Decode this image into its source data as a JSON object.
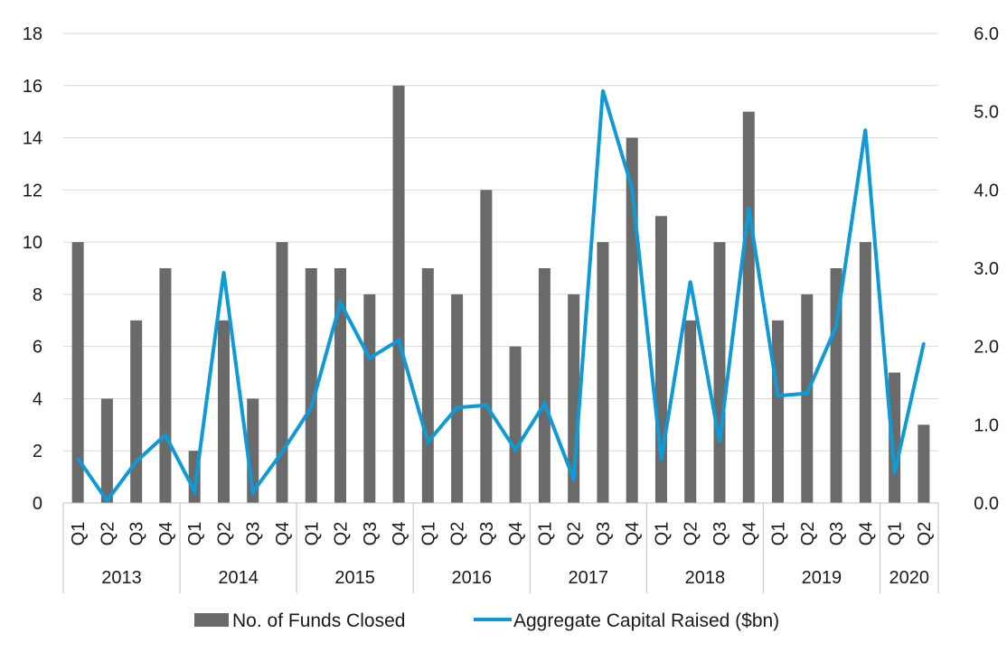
{
  "chart_data": {
    "type": "bar+line",
    "title": "",
    "xlabel": "",
    "ylabel": "",
    "groups": [
      {
        "label": "2013",
        "quarters": [
          "Q1",
          "Q2",
          "Q3",
          "Q4"
        ]
      },
      {
        "label": "2014",
        "quarters": [
          "Q1",
          "Q2",
          "Q3",
          "Q4"
        ]
      },
      {
        "label": "2015",
        "quarters": [
          "Q1",
          "Q2",
          "Q3",
          "Q4"
        ]
      },
      {
        "label": "2016",
        "quarters": [
          "Q1",
          "Q2",
          "Q3",
          "Q4"
        ]
      },
      {
        "label": "2017",
        "quarters": [
          "Q1",
          "Q2",
          "Q3",
          "Q4"
        ]
      },
      {
        "label": "2018",
        "quarters": [
          "Q1",
          "Q2",
          "Q3",
          "Q4"
        ]
      },
      {
        "label": "2019",
        "quarters": [
          "Q1",
          "Q2",
          "Q3",
          "Q4"
        ]
      },
      {
        "label": "2020",
        "quarters": [
          "Q1",
          "Q2"
        ]
      }
    ],
    "y_left": {
      "min": 0,
      "max": 18,
      "ticks": [
        "0",
        "2",
        "4",
        "6",
        "8",
        "10",
        "12",
        "14",
        "16",
        "18"
      ]
    },
    "y_right": {
      "min": 0,
      "max": 6,
      "ticks": [
        "0.0",
        "1.0",
        "2.0",
        "3.0",
        "4.0",
        "5.0",
        "6.0"
      ]
    },
    "grid": true,
    "legend_position": "bottom",
    "series": [
      {
        "name": "No. of Funds Closed",
        "type": "bar",
        "axis": "left",
        "color": "#6b6a6a",
        "values": [
          10,
          4,
          7,
          9,
          2,
          7,
          4,
          10,
          9,
          9,
          8,
          16,
          9,
          8,
          12,
          6,
          9,
          8,
          10,
          14,
          11,
          7,
          10,
          15,
          7,
          8,
          9,
          10,
          5,
          3
        ]
      },
      {
        "name": "Aggregate Capital Raised ($bn)",
        "type": "line",
        "axis": "right",
        "color": "#0d9ad6",
        "values": [
          0.57,
          0.03,
          0.53,
          0.87,
          0.15,
          2.95,
          0.14,
          0.65,
          1.22,
          2.56,
          1.85,
          2.08,
          0.78,
          1.22,
          1.25,
          0.68,
          1.27,
          0.3,
          5.27,
          4.02,
          0.55,
          2.83,
          0.78,
          3.77,
          1.37,
          1.4,
          2.26,
          4.77,
          0.38,
          2.04
        ]
      }
    ]
  }
}
